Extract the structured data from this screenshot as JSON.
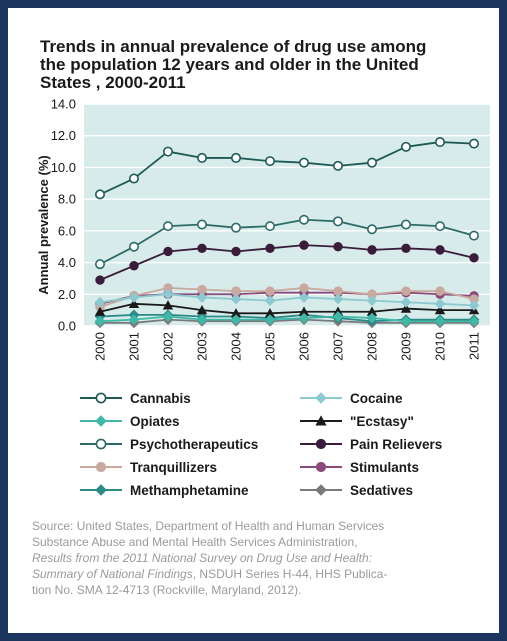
{
  "title_lines": [
    "Trends in annual prevalence of drug use among",
    "the population 12 years and older in the United",
    "States , 2000-2011"
  ],
  "source_lines": [
    {
      "normal": "Source: United States, Department of Health and Human Services",
      "italic": ""
    },
    {
      "normal": "Substance Abuse and Mental Health Services Administration,",
      "italic": ""
    },
    {
      "normal": "",
      "italic": "Results from the 2011 National Survey on Drug Use and Health:"
    },
    {
      "normal": ", NSDUH Series H-44, HHS Publica-",
      "italic": "Summary of National Findings"
    },
    {
      "normal": "tion No. SMA 12-4713 (Rockville, Maryland, 2012).",
      "italic": ""
    }
  ],
  "chart_data": {
    "type": "line",
    "title": "Trends in annual prevalence of drug use among the population 12 years and older in the United States , 2000-2011",
    "xlabel": "",
    "ylabel": "Annual prevalence (%)",
    "x": [
      "2000",
      "2001",
      "2002",
      "2003",
      "2004",
      "2005",
      "2006",
      "2007",
      "2008",
      "2009",
      "2010",
      "2011"
    ],
    "ylim": [
      0,
      14
    ],
    "yticks": [
      "0.0",
      "2.0",
      "4.0",
      "6.0",
      "8.0",
      "10.0",
      "12.0",
      "14.0"
    ],
    "grid": true,
    "legend_position": "bottom",
    "plot_background": "#d7ecea",
    "series": [
      {
        "name": "Cannabis",
        "color": "#1f5a55",
        "marker": "open-circle",
        "values": [
          8.3,
          9.3,
          11.0,
          10.6,
          10.6,
          10.4,
          10.3,
          10.1,
          10.3,
          11.3,
          11.6,
          11.5
        ]
      },
      {
        "name": "Cocaine",
        "color": "#8cc9d0",
        "marker": "diamond",
        "values": [
          1.5,
          1.8,
          2.0,
          1.8,
          1.7,
          1.6,
          1.8,
          1.7,
          1.6,
          1.5,
          1.4,
          1.3
        ]
      },
      {
        "name": "Opiates",
        "color": "#3fb8a8",
        "marker": "diamond",
        "values": [
          0.3,
          0.4,
          0.6,
          0.4,
          0.4,
          0.4,
          0.5,
          0.6,
          0.5,
          0.3,
          0.3,
          0.3
        ]
      },
      {
        "name": "\"Ecstasy\"",
        "color": "#1a1a1a",
        "marker": "triangle",
        "values": [
          0.9,
          1.4,
          1.3,
          1.0,
          0.8,
          0.8,
          0.9,
          0.9,
          0.9,
          1.1,
          1.0,
          1.0
        ]
      },
      {
        "name": "Psychotherapeutics",
        "color": "#2d6a68",
        "marker": "open-circle",
        "values": [
          3.9,
          5.0,
          6.3,
          6.4,
          6.2,
          6.3,
          6.7,
          6.6,
          6.1,
          6.4,
          6.3,
          5.7
        ]
      },
      {
        "name": "Pain Relievers",
        "color": "#3a1d3a",
        "marker": "filled-circle",
        "values": [
          2.9,
          3.8,
          4.7,
          4.9,
          4.7,
          4.9,
          5.1,
          5.0,
          4.8,
          4.9,
          4.8,
          4.3
        ]
      },
      {
        "name": "Tranquillizers",
        "color": "#c9a8a0",
        "marker": "filled-circle",
        "values": [
          1.2,
          1.9,
          2.4,
          2.3,
          2.2,
          2.2,
          2.4,
          2.2,
          2.0,
          2.2,
          2.2,
          1.7
        ]
      },
      {
        "name": "Stimulants",
        "color": "#8a4a7a",
        "marker": "filled-circle",
        "values": [
          1.4,
          1.9,
          2.0,
          2.0,
          2.0,
          2.1,
          2.1,
          2.1,
          2.0,
          2.1,
          2.0,
          1.9
        ]
      },
      {
        "name": "Methamphetamine",
        "color": "#2a8a88",
        "marker": "diamond",
        "values": [
          0.6,
          0.7,
          0.7,
          0.6,
          0.6,
          0.5,
          0.7,
          0.5,
          0.3,
          0.4,
          0.4,
          0.4
        ]
      },
      {
        "name": "Sedatives",
        "color": "#7a7a7a",
        "marker": "diamond",
        "values": [
          0.2,
          0.2,
          0.4,
          0.3,
          0.3,
          0.3,
          0.4,
          0.3,
          0.2,
          0.2,
          0.2,
          0.2
        ]
      }
    ]
  }
}
